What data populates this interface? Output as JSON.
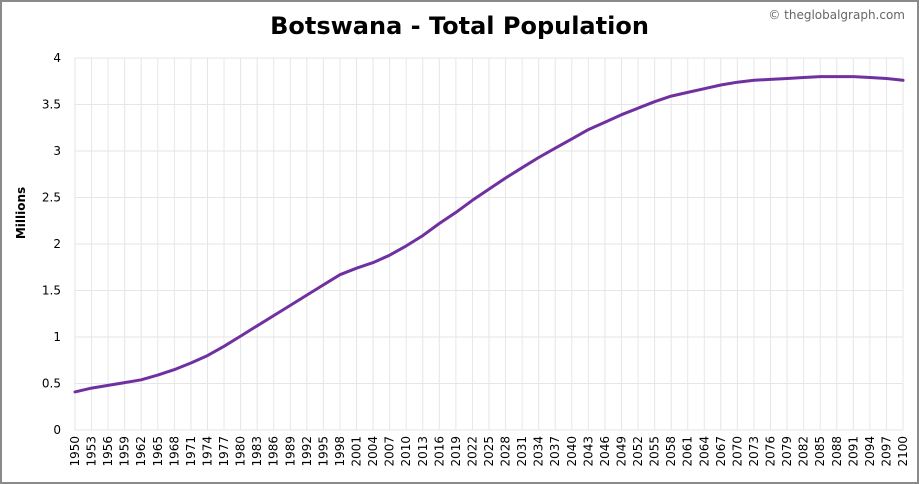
{
  "title": "Botswana - Total Population",
  "credit": "© theglobalgraph.com",
  "colors": {
    "line": "#7030a0",
    "grid": "#e6e6e6",
    "frame": "#8a8a8a"
  },
  "chart_data": {
    "type": "line",
    "title": "Botswana - Total Population",
    "xlabel": "",
    "ylabel": "Millions",
    "xlim": [
      1950,
      2100
    ],
    "ylim": [
      0,
      4
    ],
    "y_ticks": [
      "0",
      "0.5",
      "1",
      "1.5",
      "2",
      "2.5",
      "3",
      "3.5",
      "4"
    ],
    "x_ticks": [
      "1950",
      "1953",
      "1956",
      "1959",
      "1962",
      "1965",
      "1968",
      "1971",
      "1974",
      "1977",
      "1980",
      "1983",
      "1986",
      "1989",
      "1992",
      "1995",
      "1998",
      "2001",
      "2004",
      "2007",
      "2010",
      "2013",
      "2016",
      "2019",
      "2022",
      "2025",
      "2028",
      "2031",
      "2034",
      "2037",
      "2040",
      "2043",
      "2046",
      "2049",
      "2052",
      "2055",
      "2058",
      "2061",
      "2064",
      "2067",
      "2070",
      "2073",
      "2076",
      "2079",
      "2082",
      "2085",
      "2088",
      "2091",
      "2094",
      "2097",
      "2100"
    ],
    "grid": true,
    "series": [
      {
        "x": [
          1950,
          1953,
          1956,
          1959,
          1962,
          1965,
          1968,
          1971,
          1974,
          1977,
          1980,
          1983,
          1986,
          1989,
          1992,
          1995,
          1998,
          2001,
          2004,
          2007,
          2010,
          2013,
          2016,
          2019,
          2022,
          2025,
          2028,
          2031,
          2034,
          2037,
          2040,
          2043,
          2046,
          2049,
          2052,
          2055,
          2058,
          2061,
          2064,
          2067,
          2070,
          2073,
          2076,
          2079,
          2082,
          2085,
          2088,
          2091,
          2094,
          2097,
          2100
        ],
        "values": [
          0.41,
          0.45,
          0.48,
          0.51,
          0.54,
          0.59,
          0.65,
          0.72,
          0.8,
          0.9,
          1.01,
          1.12,
          1.23,
          1.34,
          1.45,
          1.56,
          1.67,
          1.74,
          1.8,
          1.88,
          1.98,
          2.09,
          2.22,
          2.34,
          2.47,
          2.59,
          2.71,
          2.82,
          2.93,
          3.03,
          3.13,
          3.23,
          3.31,
          3.39,
          3.46,
          3.53,
          3.59,
          3.63,
          3.67,
          3.71,
          3.74,
          3.76,
          3.77,
          3.78,
          3.79,
          3.8,
          3.8,
          3.8,
          3.79,
          3.78,
          3.76
        ]
      }
    ]
  }
}
